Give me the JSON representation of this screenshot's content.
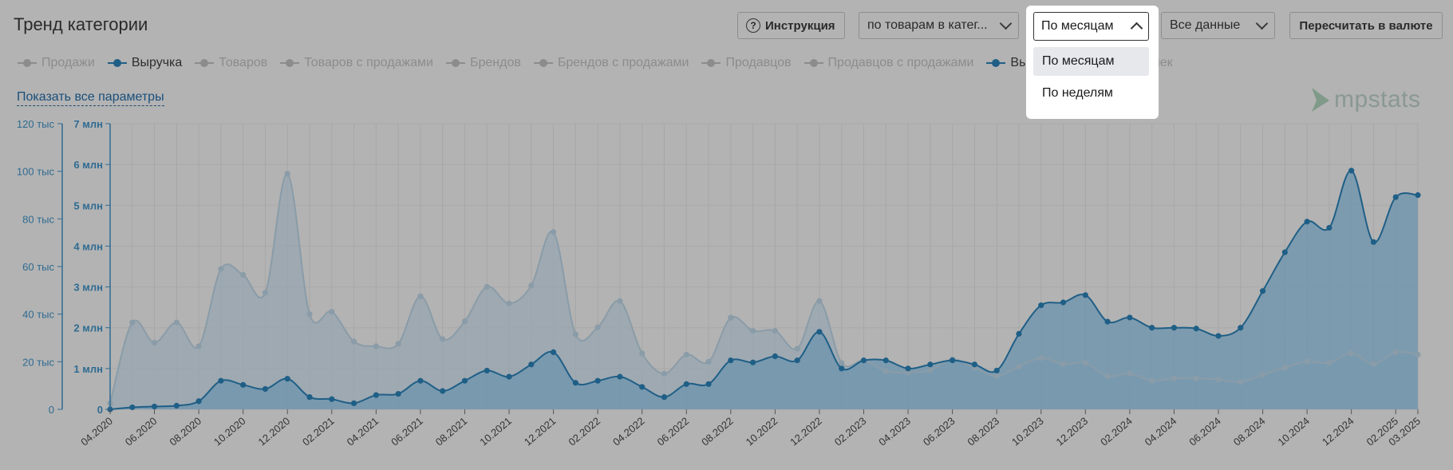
{
  "header": {
    "title": "Тренд категории",
    "help_label": "Инструкция",
    "mode_select": "по товарам в катег...",
    "period_select": "По месяцам",
    "range_select": "Все данные",
    "recalc_button": "Пересчитать в валюте"
  },
  "period_menu": {
    "options": [
      "По месяцам",
      "По неделям"
    ],
    "selected": "По месяцам"
  },
  "legend": [
    {
      "label": "Продажи",
      "active": false
    },
    {
      "label": "Выручка",
      "active": true
    },
    {
      "label": "Товаров",
      "active": false
    },
    {
      "label": "Товаров с продажами",
      "active": false
    },
    {
      "label": "Брендов",
      "active": false
    },
    {
      "label": "Брендов с продажами",
      "active": false
    },
    {
      "label": "Продавцов",
      "active": false
    },
    {
      "label": "Продавцов с продажами",
      "active": false
    },
    {
      "label": "Выручка",
      "active": true
    },
    {
      "label": "Средний чек",
      "active": false
    }
  ],
  "show_all_link": "Показать все параметры",
  "logo_text": "mpstats",
  "colors": {
    "overlay_bg": "#b3b3b3",
    "revenue_line": "#1f5f86",
    "sales_line": "#8a9ca8",
    "axis_text": "#2f6b91",
    "menu_bg": "#ffffff"
  },
  "chart_data": {
    "type": "area",
    "x_tick_labels": [
      "04.2020",
      "06.2020",
      "08.2020",
      "10.2020",
      "12.2020",
      "02.2021",
      "04.2021",
      "06.2021",
      "08.2021",
      "10.2021",
      "12.2021",
      "02.2022",
      "04.2022",
      "06.2022",
      "08.2022",
      "10.2022",
      "12.2022",
      "02.2023",
      "04.2023",
      "06.2023",
      "08.2023",
      "10.2023",
      "12.2023",
      "02.2024",
      "04.2024",
      "06.2024",
      "08.2024",
      "10.2024",
      "12.2024",
      "02.2025",
      "03.2025"
    ],
    "x": [
      "04.2020",
      "05.2020",
      "06.2020",
      "07.2020",
      "08.2020",
      "09.2020",
      "10.2020",
      "11.2020",
      "12.2020",
      "01.2021",
      "02.2021",
      "03.2021",
      "04.2021",
      "05.2021",
      "06.2021",
      "07.2021",
      "08.2021",
      "09.2021",
      "10.2021",
      "11.2021",
      "12.2021",
      "01.2022",
      "02.2022",
      "03.2022",
      "04.2022",
      "05.2022",
      "06.2022",
      "07.2022",
      "08.2022",
      "09.2022",
      "10.2022",
      "11.2022",
      "12.2022",
      "01.2023",
      "02.2023",
      "03.2023",
      "04.2023",
      "05.2023",
      "06.2023",
      "07.2023",
      "08.2023",
      "09.2023",
      "10.2023",
      "11.2023",
      "12.2023",
      "01.2024",
      "02.2024",
      "03.2024",
      "04.2024",
      "05.2024",
      "06.2024",
      "07.2024",
      "08.2024",
      "09.2024",
      "10.2024",
      "11.2024",
      "12.2024",
      "01.2025",
      "02.2025",
      "03.2025"
    ],
    "y_left_axis": {
      "ticks": [
        "0",
        "20 тыс",
        "40 тыс",
        "60 тыс",
        "80 тыс",
        "100 тыс",
        "120 тыс"
      ],
      "range": [
        0,
        120000
      ]
    },
    "y_right_axis": {
      "ticks": [
        "0",
        "1 млн",
        "2 млн",
        "3 млн",
        "4 млн",
        "5 млн",
        "6 млн",
        "7 млн"
      ],
      "range": [
        0,
        7000000
      ]
    },
    "series": [
      {
        "name": "Продажи",
        "axis": "left",
        "values": [
          2500,
          36500,
          28000,
          36500,
          26500,
          59000,
          56500,
          49000,
          99000,
          40000,
          41000,
          28500,
          26500,
          27500,
          47500,
          29500,
          37000,
          51500,
          44500,
          52000,
          74500,
          31500,
          34500,
          45500,
          23500,
          15000,
          23000,
          20000,
          38500,
          33000,
          33000,
          25500,
          45500,
          19500,
          20500,
          16000,
          15500,
          16500,
          21000,
          17500,
          14000,
          18000,
          21500,
          19000,
          19500,
          14000,
          15000,
          12000,
          13000,
          13000,
          12500,
          11500,
          14500,
          17500,
          20000,
          19500,
          23500,
          19000,
          24000,
          23000
        ]
      },
      {
        "name": "Выручка",
        "axis": "right",
        "values": [
          0,
          50000,
          70000,
          90000,
          200000,
          700000,
          600000,
          500000,
          750000,
          300000,
          250000,
          150000,
          350000,
          380000,
          700000,
          450000,
          700000,
          950000,
          800000,
          1100000,
          1400000,
          650000,
          700000,
          800000,
          550000,
          300000,
          620000,
          620000,
          1200000,
          1150000,
          1300000,
          1200000,
          1900000,
          1000000,
          1200000,
          1200000,
          1000000,
          1100000,
          1200000,
          1100000,
          950000,
          1850000,
          2550000,
          2620000,
          2800000,
          2150000,
          2250000,
          2000000,
          2000000,
          1980000,
          1800000,
          2000000,
          2900000,
          3850000,
          4600000,
          4450000,
          5850000,
          4100000,
          5200000,
          5250000
        ]
      }
    ],
    "grid": true,
    "legend_position": "top-left"
  }
}
